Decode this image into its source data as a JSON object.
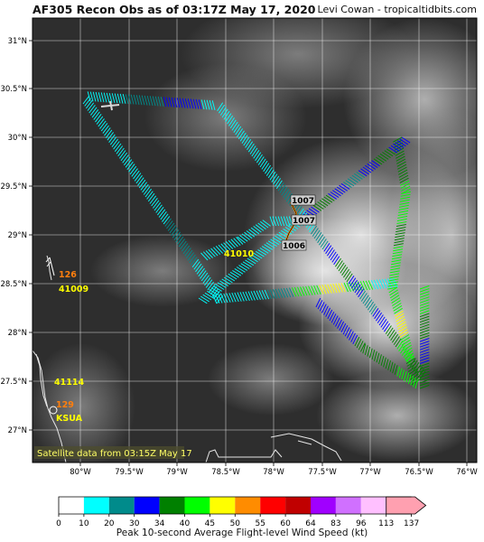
{
  "header": {
    "title": "AF305 Recon Obs as of 03:17Z May 17, 2020",
    "credit": "Levi Cowan - tropicaltidbits.com"
  },
  "map": {
    "lon_ticks": [
      "80°W",
      "79.5°W",
      "79°W",
      "78.5°W",
      "78°W",
      "77.5°W",
      "77°W",
      "76.5°W",
      "76°W"
    ],
    "lat_ticks": [
      "31°N",
      "30.5°N",
      "30°N",
      "29.5°N",
      "29°N",
      "28.5°N",
      "28°N",
      "27.5°N",
      "27°N"
    ],
    "satellite_note": "Satellite data from 03:15Z May 17",
    "pressure_labels": [
      "1007",
      "1007",
      "1006"
    ],
    "stations": [
      {
        "id": "41009",
        "speed": "126"
      },
      {
        "id": "41114",
        "speed": ""
      },
      {
        "id": "KSUA",
        "speed": "129"
      },
      {
        "id": "41010",
        "speed": ""
      }
    ],
    "colors": {
      "land_outline": "#e6e6e6",
      "grid": "#ffffff",
      "id_label": "#ffff00",
      "speed_label": "#ff7f0e"
    }
  },
  "colorbar": {
    "title": "Peak 10-second Average Flight-level Wind Speed (kt)",
    "ticks": [
      "0",
      "10",
      "20",
      "30",
      "34",
      "40",
      "45",
      "50",
      "55",
      "60",
      "64",
      "83",
      "96",
      "113",
      "137"
    ],
    "colors": [
      "#ffffff",
      "#00ffff",
      "#008b8b",
      "#0000ff",
      "#008000",
      "#00ff00",
      "#ffff00",
      "#ff8c00",
      "#ff0000",
      "#c00000",
      "#a000ff",
      "#d070ff",
      "#ffc0ff",
      "#ffa0b0"
    ]
  }
}
